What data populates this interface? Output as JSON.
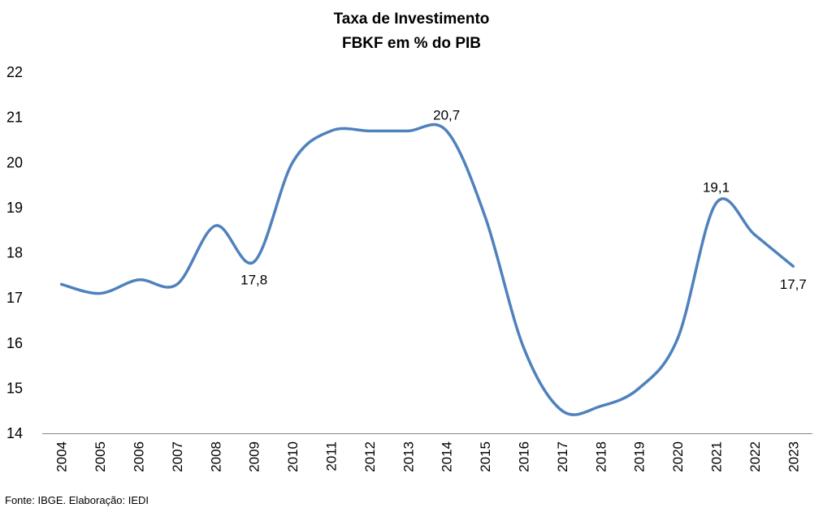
{
  "chart_data": {
    "type": "line",
    "title": "Taxa de Investimento",
    "subtitle": "FBKF em % do PIB",
    "xlabel": "",
    "ylabel": "",
    "categories": [
      "2004",
      "2005",
      "2006",
      "2007",
      "2008",
      "2009",
      "2010",
      "2011",
      "2012",
      "2013",
      "2014",
      "2015",
      "2016",
      "2017",
      "2018",
      "2019",
      "2020",
      "2021",
      "2022",
      "2023"
    ],
    "series": [
      {
        "name": "",
        "color": "#4f81bd",
        "values": [
          17.3,
          17.1,
          17.4,
          17.3,
          18.6,
          17.8,
          20.0,
          20.7,
          20.7,
          20.7,
          20.7,
          18.8,
          15.9,
          14.5,
          14.6,
          15.0,
          16.1,
          19.1,
          18.4,
          17.7
        ]
      }
    ],
    "data_labels": [
      {
        "index": 5,
        "text": "17,8",
        "position": "below"
      },
      {
        "index": 10,
        "text": "20,7",
        "position": "above"
      },
      {
        "index": 17,
        "text": "19,1",
        "position": "above"
      },
      {
        "index": 19,
        "text": "17,7",
        "position": "below"
      }
    ],
    "ylim": [
      14,
      22
    ],
    "yticks": [
      "14",
      "15",
      "16",
      "17",
      "18",
      "19",
      "20",
      "21",
      "22"
    ],
    "grid": false,
    "legend": "none",
    "smooth": true
  },
  "footer": {
    "source": "Fonte: IBGE. Elaboração: IEDI"
  }
}
